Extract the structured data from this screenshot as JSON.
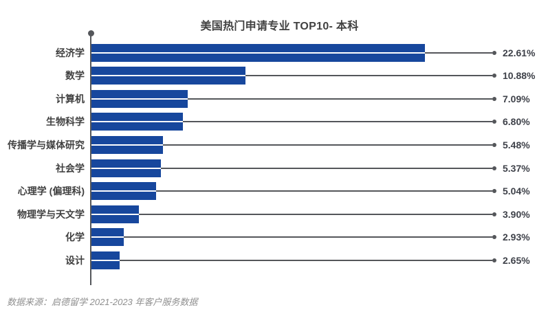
{
  "header": {
    "title": "美国热门申请专业 TOP10- 本科"
  },
  "footer": {
    "source_note": "数据来源：启德留学 2021-2023 年客户服务数据"
  },
  "chart_data": {
    "type": "bar",
    "orientation": "horizontal",
    "title": "美国热门申请专业 TOP10- 本科",
    "categories": [
      "经济学",
      "数学",
      "计算机",
      "生物科学",
      "传播学与媒体研究",
      "社会学",
      "心理学 (偏理科)",
      "物理学与天文学",
      "化学",
      "设计"
    ],
    "values": [
      22.61,
      10.88,
      7.09,
      6.8,
      5.48,
      5.37,
      5.04,
      3.9,
      2.93,
      2.65
    ],
    "value_labels": [
      "22.61%",
      "10.88%",
      "7.09%",
      "6.80%",
      "5.48%",
      "5.37%",
      "5.04%",
      "3.90%",
      "2.93%",
      "2.65%"
    ],
    "xlabel": "",
    "ylabel": "",
    "xlim": [
      0,
      22.61
    ],
    "grid": false,
    "legend": false,
    "value_label_position": "right",
    "source": "数据来源：启德留学 2021-2023 年客户服务数据",
    "colors": {
      "bg": "#ffffff",
      "bar": "#17479d",
      "axis": "#54565a",
      "text": "#414141",
      "value": "#3e4149",
      "source": "#8f8f8f"
    }
  }
}
